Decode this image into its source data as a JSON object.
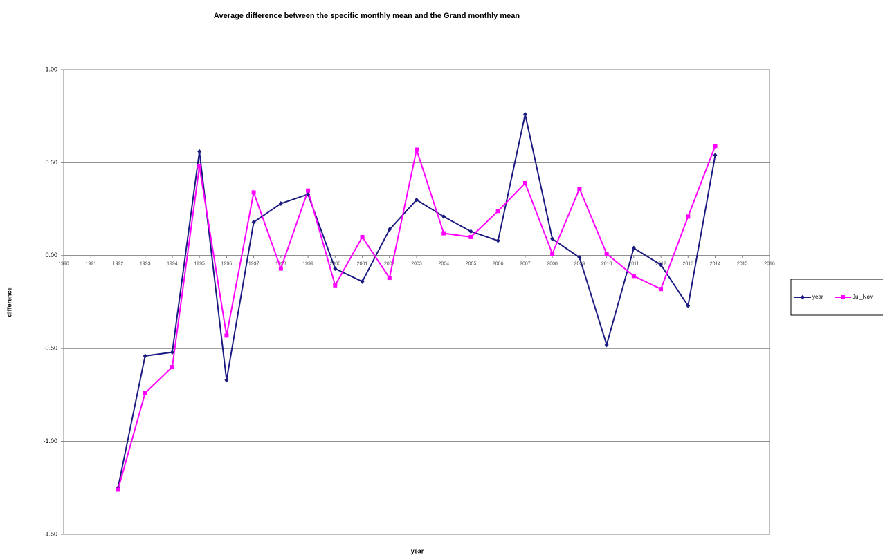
{
  "chart_data": {
    "type": "line",
    "title": "Average difference between the specific monthly mean and the Grand monthly mean",
    "xlabel": "year",
    "ylabel": "difference",
    "x": [
      1992,
      1993,
      1994,
      1995,
      1996,
      1997,
      1998,
      1999,
      2000,
      2001,
      2002,
      2003,
      2004,
      2005,
      2006,
      2007,
      2008,
      2009,
      2010,
      2011,
      2012,
      2013,
      2014
    ],
    "series": [
      {
        "name": "year",
        "color": "#1a1a80",
        "marker": "diamond",
        "values": [
          -1.25,
          -0.54,
          -0.52,
          0.56,
          -0.67,
          0.18,
          0.28,
          0.33,
          -0.07,
          -0.14,
          0.14,
          0.3,
          0.21,
          0.13,
          0.08,
          0.76,
          0.09,
          -0.01,
          -0.48,
          0.04,
          -0.05,
          -0.27,
          0.54
        ]
      },
      {
        "name": "Jul_Nov",
        "color": "#ff00ff",
        "marker": "square",
        "values": [
          -1.26,
          -0.74,
          -0.6,
          0.48,
          -0.43,
          0.34,
          -0.07,
          0.35,
          -0.16,
          0.1,
          -0.12,
          0.57,
          0.12,
          0.1,
          0.24,
          0.39,
          0.01,
          0.36,
          0.01,
          -0.11,
          -0.18,
          0.21,
          0.59
        ]
      }
    ],
    "xlim": [
      1990,
      2016
    ],
    "xticks": [
      1990,
      1991,
      1992,
      1993,
      1994,
      1995,
      1996,
      1997,
      1998,
      1999,
      2000,
      2001,
      2002,
      2003,
      2004,
      2005,
      2006,
      2007,
      2008,
      2009,
      2010,
      2011,
      2012,
      2013,
      2014,
      2015,
      2016
    ],
    "ylim": [
      -1.5,
      1.0
    ],
    "yticks": [
      {
        "value": -1.5,
        "label": "-1.50"
      },
      {
        "value": -1.0,
        "label": "-1.00"
      },
      {
        "value": -0.5,
        "label": "-0.50"
      },
      {
        "value": 0,
        "label": "0.00"
      },
      {
        "value": 0.5,
        "label": "0.50"
      },
      {
        "value": 1.0,
        "label": "1.00"
      }
    ],
    "grid": true,
    "legend": "right"
  }
}
